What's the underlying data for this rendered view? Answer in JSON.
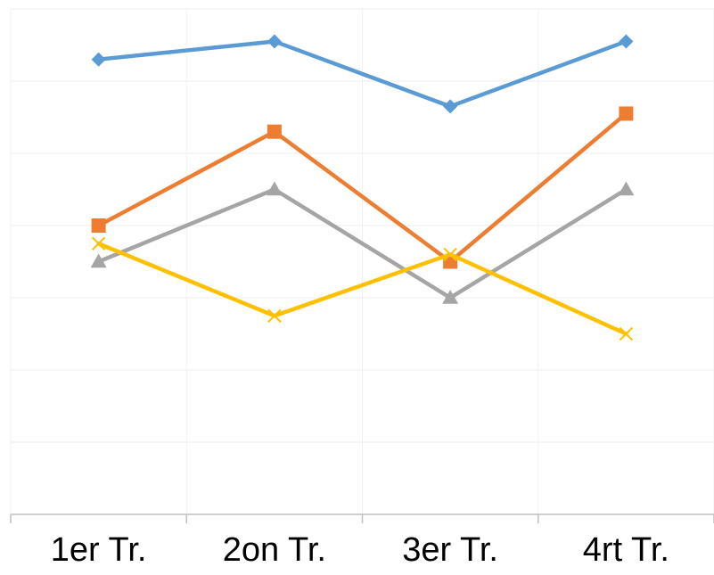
{
  "chart_data": {
    "type": "line",
    "categories": [
      "1er Tr.",
      "2on Tr.",
      "3er Tr.",
      "4rt Tr."
    ],
    "ylim": [
      0,
      14
    ],
    "grid": true,
    "legend": "none",
    "series": [
      {
        "values": [
          12.6,
          13.1,
          11.3,
          13.1
        ],
        "color": "#5B9BD5",
        "marker": "diamond"
      },
      {
        "values": [
          8.0,
          10.6,
          7.0,
          11.1
        ],
        "color": "#ED7D31",
        "marker": "square"
      },
      {
        "values": [
          7.0,
          9.0,
          6.0,
          9.0
        ],
        "color": "#A5A5A5",
        "marker": "triangle"
      },
      {
        "values": [
          7.5,
          5.5,
          7.2,
          5.0
        ],
        "color": "#FFC000",
        "marker": "x"
      }
    ]
  }
}
